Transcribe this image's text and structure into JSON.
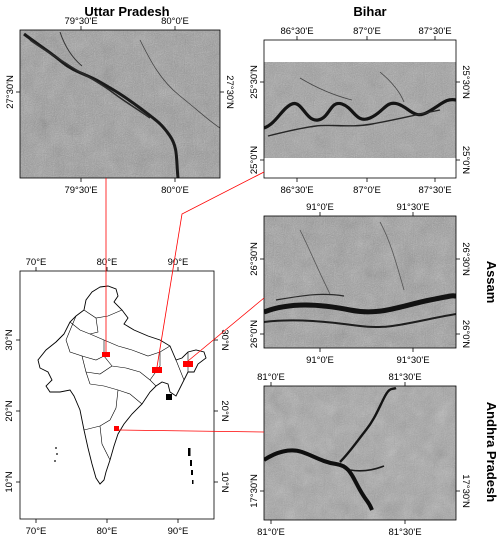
{
  "titles": {
    "uttar_pradesh": "Uttar Pradesh",
    "bihar": "Bihar",
    "assam": "Assam",
    "andhra_pradesh": "Andhra Pradesh"
  },
  "panels": {
    "uttar_pradesh": {
      "x_ticks": [
        "79°30'E",
        "80°0'E"
      ],
      "y_ticks": [
        "27°30'N"
      ]
    },
    "bihar": {
      "x_ticks": [
        "86°30'E",
        "87°0'E",
        "87°30'E"
      ],
      "y_ticks": [
        "25°30'N",
        "25°0'N"
      ]
    },
    "assam": {
      "x_ticks": [
        "91°0'E",
        "91°30'E"
      ],
      "y_ticks": [
        "26°30'N",
        "26°0'N"
      ]
    },
    "andhra_pradesh": {
      "x_ticks": [
        "81°0'E",
        "81°30'E"
      ],
      "y_ticks": [
        "17°30'N"
      ]
    }
  },
  "india_map": {
    "x_ticks": [
      "70°E",
      "80°E",
      "90°E"
    ],
    "y_ticks": [
      "30°N",
      "20°N",
      "10°N"
    ]
  },
  "colors": {
    "highlight": "#ff0000",
    "connector": "#ff0000",
    "sar_base": "#8c8c8c",
    "river": "#1a1a1a"
  }
}
